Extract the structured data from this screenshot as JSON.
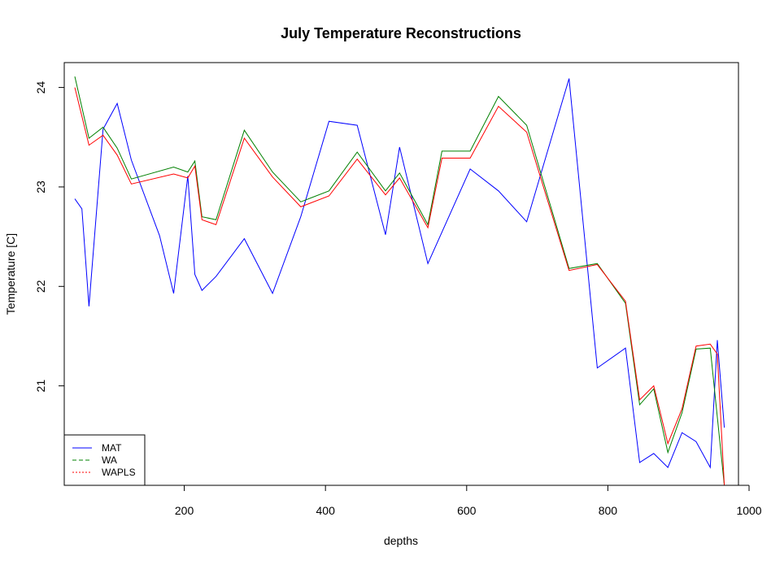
{
  "chart_data": {
    "type": "line",
    "title": "July Temperature Reconstructions",
    "xlabel": "depths",
    "ylabel": "Temperature [C]",
    "xlim": [
      30,
      985
    ],
    "ylim": [
      20.0,
      24.25
    ],
    "x_ticks": [
      200,
      400,
      600,
      800,
      1000
    ],
    "y_ticks": [
      21,
      22,
      23,
      24
    ],
    "grid": false,
    "legend_position": "bottom-left",
    "series": [
      {
        "name": "MAT",
        "color": "#0000ff",
        "line_style": "solid",
        "points": [
          [
            45,
            22.88
          ],
          [
            55,
            22.78
          ],
          [
            65,
            21.8
          ],
          [
            85,
            23.58
          ],
          [
            105,
            23.84
          ],
          [
            125,
            23.27
          ],
          [
            165,
            22.51
          ],
          [
            185,
            21.93
          ],
          [
            205,
            23.11
          ],
          [
            215,
            22.12
          ],
          [
            225,
            21.96
          ],
          [
            245,
            22.1
          ],
          [
            285,
            22.48
          ],
          [
            325,
            21.93
          ],
          [
            365,
            22.7
          ],
          [
            405,
            23.66
          ],
          [
            445,
            23.62
          ],
          [
            485,
            22.52
          ],
          [
            505,
            23.4
          ],
          [
            545,
            22.23
          ],
          [
            605,
            23.18
          ],
          [
            645,
            22.96
          ],
          [
            685,
            22.65
          ],
          [
            745,
            24.09
          ],
          [
            785,
            21.18
          ],
          [
            825,
            21.38
          ],
          [
            845,
            20.23
          ],
          [
            865,
            20.32
          ],
          [
            885,
            20.18
          ],
          [
            905,
            20.53
          ],
          [
            925,
            20.44
          ],
          [
            945,
            20.18
          ],
          [
            955,
            21.46
          ],
          [
            965,
            20.58
          ]
        ]
      },
      {
        "name": "WA",
        "color": "#008000",
        "line_style": "dashed",
        "points": [
          [
            45,
            24.11
          ],
          [
            65,
            23.49
          ],
          [
            85,
            23.6
          ],
          [
            105,
            23.39
          ],
          [
            125,
            23.08
          ],
          [
            185,
            23.2
          ],
          [
            205,
            23.15
          ],
          [
            215,
            23.26
          ],
          [
            225,
            22.7
          ],
          [
            245,
            22.67
          ],
          [
            285,
            23.57
          ],
          [
            325,
            23.15
          ],
          [
            365,
            22.85
          ],
          [
            405,
            22.96
          ],
          [
            445,
            23.35
          ],
          [
            485,
            22.96
          ],
          [
            505,
            23.14
          ],
          [
            545,
            22.62
          ],
          [
            565,
            23.36
          ],
          [
            605,
            23.36
          ],
          [
            645,
            23.91
          ],
          [
            685,
            23.62
          ],
          [
            745,
            22.18
          ],
          [
            785,
            22.23
          ],
          [
            825,
            21.83
          ],
          [
            845,
            20.81
          ],
          [
            865,
            20.97
          ],
          [
            885,
            20.33
          ],
          [
            905,
            20.73
          ],
          [
            925,
            21.37
          ],
          [
            945,
            21.38
          ],
          [
            965,
            20.0
          ]
        ]
      },
      {
        "name": "WAPLS",
        "color": "#ff0000",
        "line_style": "dotted",
        "points": [
          [
            45,
            24.0
          ],
          [
            65,
            23.42
          ],
          [
            85,
            23.52
          ],
          [
            105,
            23.32
          ],
          [
            125,
            23.03
          ],
          [
            185,
            23.13
          ],
          [
            205,
            23.09
          ],
          [
            215,
            23.21
          ],
          [
            225,
            22.67
          ],
          [
            245,
            22.62
          ],
          [
            285,
            23.49
          ],
          [
            325,
            23.1
          ],
          [
            365,
            22.8
          ],
          [
            405,
            22.91
          ],
          [
            445,
            23.28
          ],
          [
            485,
            22.92
          ],
          [
            505,
            23.09
          ],
          [
            545,
            22.59
          ],
          [
            565,
            23.29
          ],
          [
            605,
            23.29
          ],
          [
            645,
            23.81
          ],
          [
            685,
            23.55
          ],
          [
            745,
            22.16
          ],
          [
            785,
            22.22
          ],
          [
            825,
            21.85
          ],
          [
            845,
            20.86
          ],
          [
            865,
            21.0
          ],
          [
            885,
            20.42
          ],
          [
            905,
            20.77
          ],
          [
            925,
            21.4
          ],
          [
            945,
            21.42
          ],
          [
            955,
            21.32
          ],
          [
            965,
            20.0
          ]
        ]
      }
    ]
  }
}
